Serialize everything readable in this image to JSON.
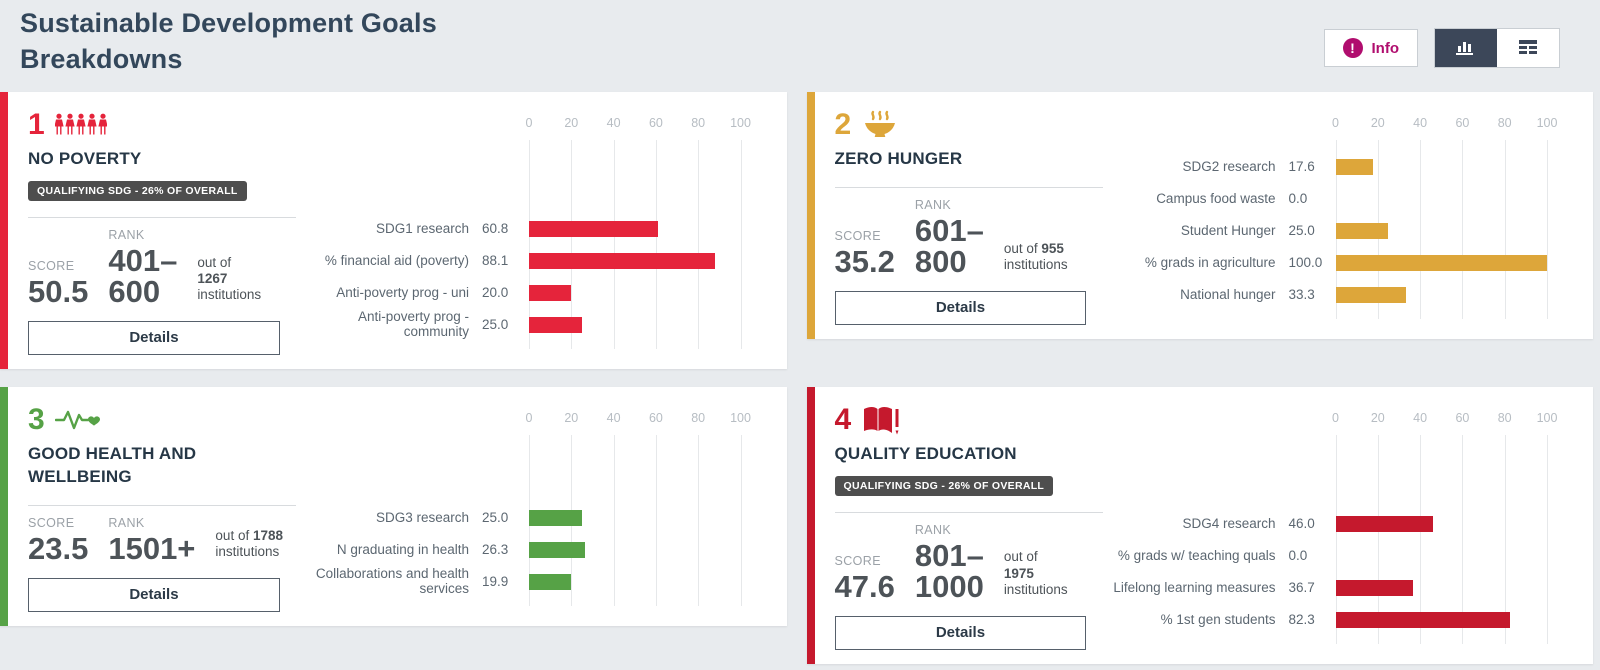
{
  "header": {
    "title": "Sustainable Development Goals\nBreakdowns",
    "info_label": "Info",
    "info_icon": "exclamation-icon",
    "accent_color": "#b00d6e",
    "view_toggle": {
      "active": "chart",
      "chart_icon": "bar-chart-icon",
      "table_icon": "table-icon"
    }
  },
  "axis_ticks": [
    "0",
    "20",
    "40",
    "60",
    "80",
    "100"
  ],
  "axis_range": [
    0,
    100
  ],
  "cards": [
    {
      "number": "1",
      "icon": "people-icon",
      "color": "#e5243b",
      "name": "NO POVERTY",
      "badge": "QUALIFYING SDG - 26% OF OVERALL",
      "score_label": "SCORE",
      "score": "50.5",
      "rank_label": "RANK",
      "rank": "401–\n600",
      "outof_prefix": "out of",
      "institutions_count": "1267",
      "outof_suffix": "institutions",
      "outof_break_after_prefix": true,
      "details_label": "Details",
      "chart_data": {
        "type": "bar",
        "categories": [
          "SDG1 research",
          "% financial aid (poverty)",
          "Anti-poverty prog - uni",
          "Anti-poverty prog - community"
        ],
        "values": [
          60.8,
          88.1,
          20.0,
          25.0
        ],
        "value_labels": [
          "60.8",
          "88.1",
          "20.0",
          "25.0"
        ],
        "xlim": [
          0,
          100
        ]
      }
    },
    {
      "number": "2",
      "icon": "bowl-icon",
      "color": "#dda63a",
      "name": "ZERO HUNGER",
      "badge": null,
      "score_label": "SCORE",
      "score": "35.2",
      "rank_label": "RANK",
      "rank": "601–\n800",
      "outof_prefix": "out of",
      "institutions_count": "955",
      "outof_suffix": "institutions",
      "outof_break_after_prefix": false,
      "details_label": "Details",
      "chart_data": {
        "type": "bar",
        "categories": [
          "SDG2 research",
          "Campus food waste",
          "Student Hunger",
          "% grads in agriculture",
          "National hunger"
        ],
        "values": [
          17.6,
          0.0,
          25.0,
          100.0,
          33.3
        ],
        "value_labels": [
          "17.6",
          "0.0",
          "25.0",
          "100.0",
          "33.3"
        ],
        "xlim": [
          0,
          100
        ]
      }
    },
    {
      "number": "3",
      "icon": "heartbeat-icon",
      "color": "#56a246",
      "name": "GOOD HEALTH AND WELLBEING",
      "badge": null,
      "score_label": "SCORE",
      "score": "23.5",
      "rank_label": "RANK",
      "rank": "1501+",
      "outof_prefix": "out of",
      "institutions_count": "1788",
      "outof_suffix": "institutions",
      "outof_break_after_prefix": false,
      "details_label": "Details",
      "chart_data": {
        "type": "bar",
        "categories": [
          "SDG3 research",
          "N graduating in health",
          "Collaborations and health services"
        ],
        "values": [
          25.0,
          26.3,
          19.9
        ],
        "value_labels": [
          "25.0",
          "26.3",
          "19.9"
        ],
        "xlim": [
          0,
          100
        ]
      }
    },
    {
      "number": "4",
      "icon": "book-icon",
      "color": "#c5192d",
      "name": "QUALITY EDUCATION",
      "badge": "QUALIFYING SDG - 26% OF OVERALL",
      "score_label": "SCORE",
      "score": "47.6",
      "rank_label": "RANK",
      "rank": "801–\n1000",
      "outof_prefix": "out of",
      "institutions_count": "1975",
      "outof_suffix": "institutions",
      "outof_break_after_prefix": true,
      "details_label": "Details",
      "chart_data": {
        "type": "bar",
        "categories": [
          "SDG4 research",
          "% grads w/ teaching quals",
          "Lifelong learning measures",
          "% 1st gen students"
        ],
        "values": [
          46.0,
          0.0,
          36.7,
          82.3
        ],
        "value_labels": [
          "46.0",
          "0.0",
          "36.7",
          "82.3"
        ],
        "xlim": [
          0,
          100
        ]
      }
    }
  ],
  "next_row_stubs": [
    {
      "color": "#ff3a21"
    },
    {
      "color": "#26bde2"
    }
  ]
}
